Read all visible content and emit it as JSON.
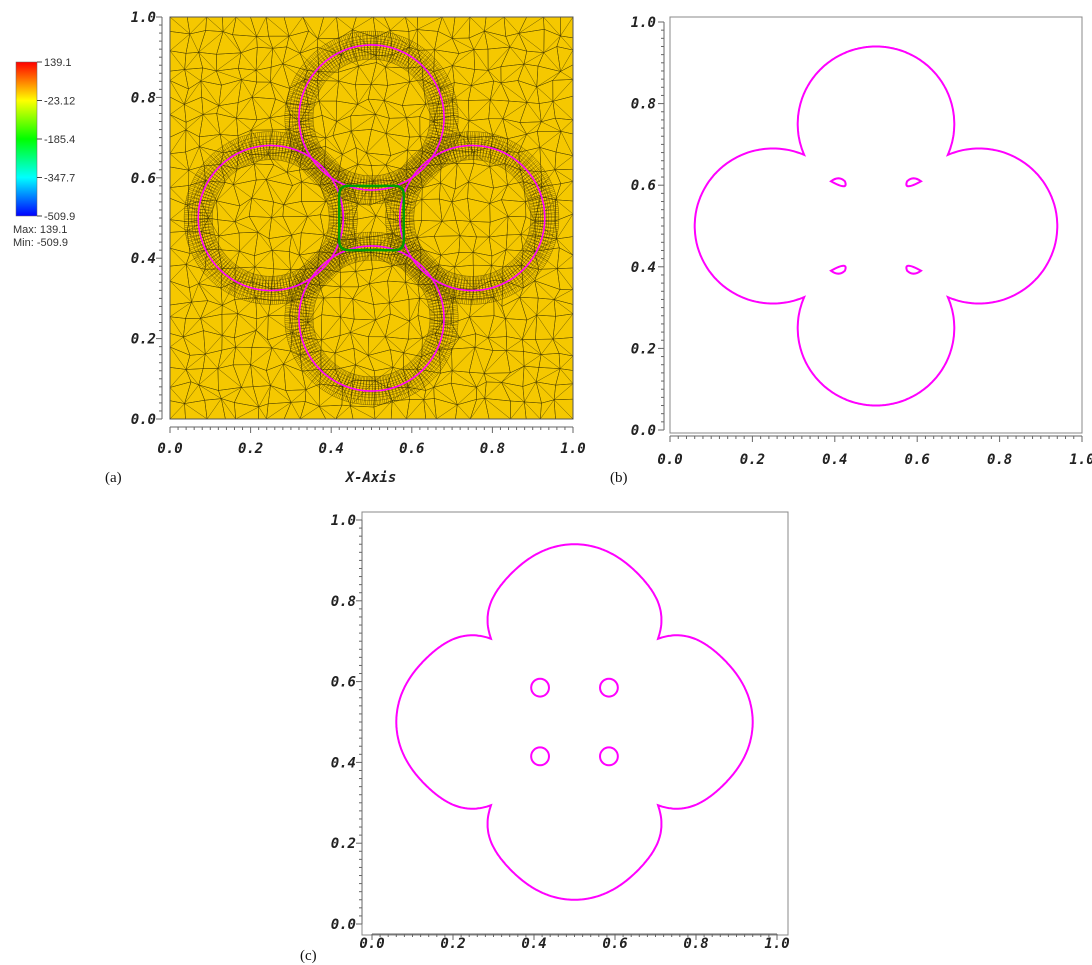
{
  "colors": {
    "mesh_fill": "#f5c800",
    "mesh_line": "#3a3000",
    "contour": "#ff00ff",
    "band_green": "#00a000",
    "band_blue": "#2020ff"
  },
  "chart_data": [
    {
      "panel": "(a)",
      "type": "heatmap",
      "title": "",
      "xlabel": "X-Axis",
      "ylabel": "",
      "xlim": [
        0.0,
        1.0
      ],
      "ylim": [
        0.0,
        1.0
      ],
      "x_ticks": [
        "0.0",
        "0.2",
        "0.4",
        "0.6",
        "0.8",
        "1.0"
      ],
      "y_ticks": [
        "0.0",
        "0.2",
        "0.4",
        "0.6",
        "0.8",
        "1.0"
      ],
      "colorbar": {
        "labels": [
          "139.1",
          "-23.12",
          "-185.4",
          "-347.7",
          "-509.9"
        ],
        "max_label": "Max: 139.1",
        "min_label": "Min: -509.9",
        "colors_top_to_bottom": [
          "#ff0000",
          "#ffff00",
          "#00ff00",
          "#00ffff",
          "#0000ff"
        ]
      },
      "circles": [
        {
          "cx": 0.5,
          "cy": 0.75,
          "r": 0.18
        },
        {
          "cx": 0.75,
          "cy": 0.5,
          "r": 0.18
        },
        {
          "cx": 0.5,
          "cy": 0.25,
          "r": 0.18
        },
        {
          "cx": 0.25,
          "cy": 0.5,
          "r": 0.18
        }
      ],
      "center_square": {
        "x0": 0.42,
        "x1": 0.58,
        "y0": 0.42,
        "y1": 0.58
      }
    },
    {
      "panel": "(b)",
      "type": "line",
      "title": "",
      "xlabel": "",
      "ylabel": "",
      "xlim": [
        0.0,
        1.0
      ],
      "ylim": [
        0.0,
        1.0
      ],
      "x_ticks": [
        "0.0",
        "0.2",
        "0.4",
        "0.6",
        "0.8",
        "1.0"
      ],
      "y_ticks": [
        "0.0",
        "0.2",
        "0.4",
        "0.6",
        "0.8",
        "1.0"
      ],
      "outer_contour": {
        "lobe_centers": [
          [
            0.5,
            0.75
          ],
          [
            0.75,
            0.5
          ],
          [
            0.5,
            0.25
          ],
          [
            0.25,
            0.5
          ]
        ],
        "lobe_radius": 0.19,
        "gap": "narrow"
      },
      "inner_drops": [
        {
          "cx": 0.41,
          "cy": 0.59
        },
        {
          "cx": 0.59,
          "cy": 0.59
        },
        {
          "cx": 0.41,
          "cy": 0.41
        },
        {
          "cx": 0.59,
          "cy": 0.41
        }
      ]
    },
    {
      "panel": "(c)",
      "type": "line",
      "title": "",
      "xlabel": "",
      "ylabel": "",
      "xlim": [
        0.0,
        1.0
      ],
      "ylim": [
        0.0,
        1.0
      ],
      "x_ticks": [
        "0.0",
        "0.2",
        "0.4",
        "0.6",
        "0.8",
        "1.0"
      ],
      "y_ticks": [
        "0.0",
        "0.2",
        "0.4",
        "0.6",
        "0.8",
        "1.0"
      ],
      "outer_contour": {
        "lobe_centers": [
          [
            0.5,
            0.75
          ],
          [
            0.75,
            0.5
          ],
          [
            0.5,
            0.25
          ],
          [
            0.25,
            0.5
          ]
        ],
        "lobe_radius": 0.19,
        "gap": "smooth"
      },
      "inner_circles": [
        {
          "cx": 0.415,
          "cy": 0.585,
          "r": 0.022
        },
        {
          "cx": 0.585,
          "cy": 0.585,
          "r": 0.022
        },
        {
          "cx": 0.415,
          "cy": 0.415,
          "r": 0.022
        },
        {
          "cx": 0.585,
          "cy": 0.415,
          "r": 0.022
        }
      ]
    }
  ]
}
